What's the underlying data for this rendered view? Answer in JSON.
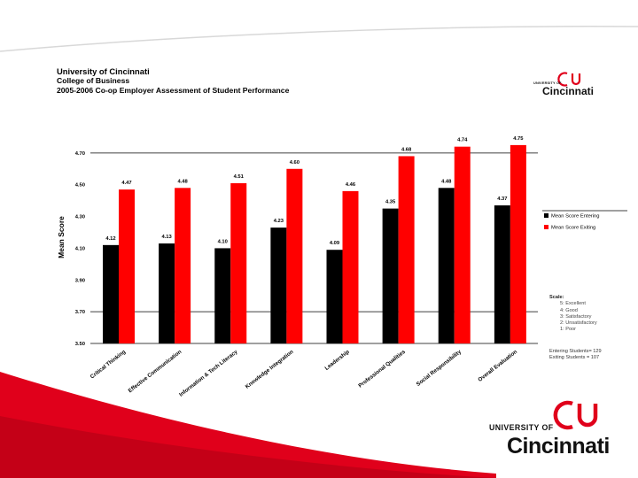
{
  "header": {
    "line1": "University of Cincinnati",
    "line2": "College of Business",
    "line3": "2005-2006 Co-op Employer Assessment of Student Performance"
  },
  "logo": {
    "university_of": "UNIVERSITY OF",
    "name": "Cincinnati"
  },
  "scale": {
    "heading": "Scale:",
    "items": [
      "5: Excellent",
      "4: Good",
      "3: Satisfactory",
      "2: Unsatisfactory",
      "1: Poor"
    ]
  },
  "counts": {
    "entering": "Entering Students= 129",
    "exiting": "Exiting Students = 107"
  },
  "colors": {
    "entering": "#000000",
    "exiting": "#ff0000",
    "brand_red": "#e0001b"
  },
  "chart_data": {
    "type": "bar",
    "title": "",
    "xlabel": "",
    "ylabel": "Mean Score",
    "ylim": [
      3.5,
      4.9
    ],
    "yticks": [
      "3.50",
      "3.70",
      "3.90",
      "4.10",
      "4.30",
      "4.50",
      "4.70"
    ],
    "yticks_values": [
      3.5,
      3.7,
      3.9,
      4.1,
      4.3,
      4.5,
      4.7
    ],
    "grid_lines_at": [
      3.7,
      4.7
    ],
    "legend_position": "right",
    "categories": [
      "Critical Thinking",
      "Effective Communication",
      "Information & Tech Literacy",
      "Knowledge Integration",
      "Leadership",
      "Professional Qualities",
      "Social Responsibility",
      "Overall Evaluation"
    ],
    "series": [
      {
        "name": "Mean Score Entering",
        "values": [
          4.12,
          4.13,
          4.1,
          4.23,
          4.09,
          4.35,
          4.48,
          4.37
        ],
        "labels": [
          "4.12",
          "4.13",
          "4.10",
          "4.23",
          "4.09",
          "4.35",
          "4.48",
          "4.37"
        ]
      },
      {
        "name": "Mean Score Exiting",
        "values": [
          4.47,
          4.48,
          4.51,
          4.6,
          4.46,
          4.68,
          4.74,
          4.75
        ],
        "labels": [
          "4.47",
          "4.48",
          "4.51",
          "4.60",
          "4.46",
          "4.68",
          "4.74",
          "4.75"
        ]
      }
    ]
  }
}
